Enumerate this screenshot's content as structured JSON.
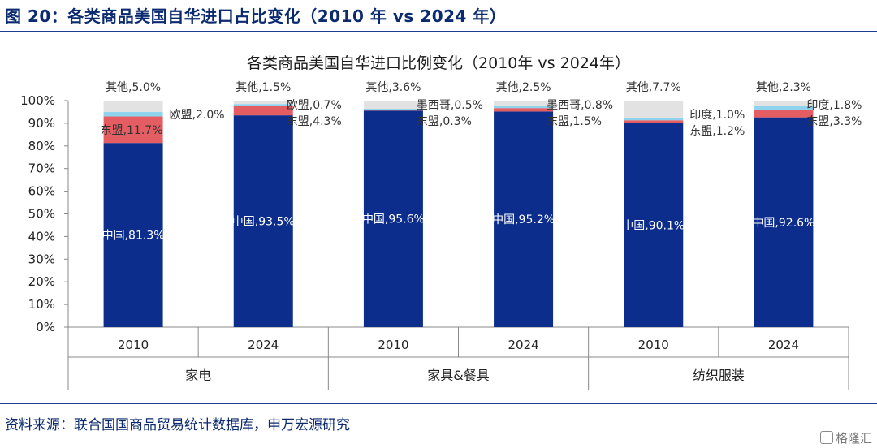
{
  "figure": {
    "title": "图 20：各类商品美国自华进口占比变化（2010 年 vs 2024 年）",
    "source": "资料来源：联合国国商品贸易统计数据库，申万宏源研究",
    "watermark": "格隆汇"
  },
  "colors": {
    "china": "#0c2d8c",
    "asean": "#e35d63",
    "third": "#8fd3ee",
    "other": "#e2e2e2",
    "rule": "#1f3a93"
  },
  "chart_data": {
    "type": "bar",
    "stacked": true,
    "title": "各类商品美国自华进口比例变化（2010年 vs 2024年）",
    "ylim": [
      0,
      100
    ],
    "y_ticks": [
      "0%",
      "10%",
      "20%",
      "30%",
      "40%",
      "50%",
      "60%",
      "70%",
      "80%",
      "90%",
      "100%"
    ],
    "groups": [
      "家电",
      "家具&餐具",
      "纺织服装"
    ],
    "bars": [
      {
        "year": "2010",
        "group": "家电",
        "segments": [
          {
            "key": "china",
            "value": 81.3,
            "label": "中国,81.3%"
          },
          {
            "key": "asean",
            "value": 11.7,
            "label": "东盟,11.7%"
          },
          {
            "key": "third",
            "value": 2.0,
            "label": "欧盟,2.0%"
          },
          {
            "key": "other",
            "value": 5.0,
            "label": "其他,5.0%"
          }
        ]
      },
      {
        "year": "2024",
        "group": "家电",
        "segments": [
          {
            "key": "china",
            "value": 93.5,
            "label": "中国,93.5%"
          },
          {
            "key": "asean",
            "value": 4.3,
            "label": "东盟,4.3%"
          },
          {
            "key": "third",
            "value": 0.7,
            "label": "欧盟,0.7%"
          },
          {
            "key": "other",
            "value": 1.5,
            "label": "其他,1.5%"
          }
        ]
      },
      {
        "year": "2010",
        "group": "家具&餐具",
        "segments": [
          {
            "key": "china",
            "value": 95.6,
            "label": "中国,95.6%"
          },
          {
            "key": "asean",
            "value": 0.3,
            "label": "东盟,0.3%"
          },
          {
            "key": "third",
            "value": 0.5,
            "label": "墨西哥,0.5%"
          },
          {
            "key": "other",
            "value": 3.6,
            "label": "其他,3.6%"
          }
        ]
      },
      {
        "year": "2024",
        "group": "家具&餐具",
        "segments": [
          {
            "key": "china",
            "value": 95.2,
            "label": "中国,95.2%"
          },
          {
            "key": "asean",
            "value": 1.5,
            "label": "东盟,1.5%"
          },
          {
            "key": "third",
            "value": 0.8,
            "label": "墨西哥,0.8%"
          },
          {
            "key": "other",
            "value": 2.5,
            "label": "其他,2.5%"
          }
        ]
      },
      {
        "year": "2010",
        "group": "纺织服装",
        "segments": [
          {
            "key": "china",
            "value": 90.1,
            "label": "中国,90.1%"
          },
          {
            "key": "asean",
            "value": 1.2,
            "label": "东盟,1.2%"
          },
          {
            "key": "third",
            "value": 1.0,
            "label": "印度,1.0%"
          },
          {
            "key": "other",
            "value": 7.7,
            "label": "其他,7.7%"
          }
        ]
      },
      {
        "year": "2024",
        "group": "纺织服装",
        "segments": [
          {
            "key": "china",
            "value": 92.6,
            "label": "中国,92.6%"
          },
          {
            "key": "asean",
            "value": 3.3,
            "label": "东盟,3.3%"
          },
          {
            "key": "third",
            "value": 1.8,
            "label": "印度,1.8%"
          },
          {
            "key": "other",
            "value": 2.3,
            "label": "其他,2.3%"
          }
        ]
      }
    ]
  }
}
